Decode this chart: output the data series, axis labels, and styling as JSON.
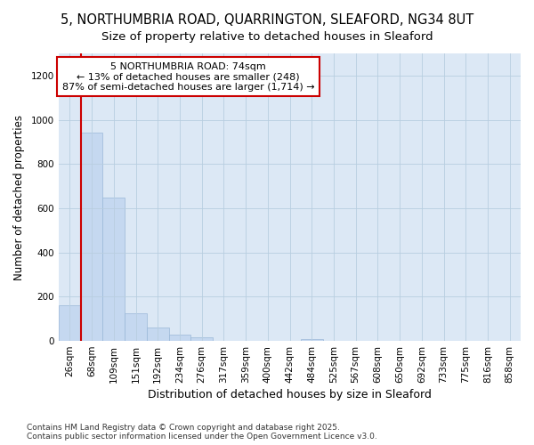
{
  "title1": "5, NORTHUMBRIA ROAD, QUARRINGTON, SLEAFORD, NG34 8UT",
  "title2": "Size of property relative to detached houses in Sleaford",
  "xlabel": "Distribution of detached houses by size in Sleaford",
  "ylabel": "Number of detached properties",
  "bin_labels": [
    "26sqm",
    "68sqm",
    "109sqm",
    "151sqm",
    "192sqm",
    "234sqm",
    "276sqm",
    "317sqm",
    "359sqm",
    "400sqm",
    "442sqm",
    "484sqm",
    "525sqm",
    "567sqm",
    "608sqm",
    "650sqm",
    "692sqm",
    "733sqm",
    "775sqm",
    "816sqm",
    "858sqm"
  ],
  "bar_heights": [
    160,
    940,
    650,
    125,
    60,
    30,
    15,
    0,
    0,
    0,
    0,
    10,
    0,
    0,
    0,
    0,
    0,
    0,
    0,
    0,
    0
  ],
  "bar_color": "#c5d8f0",
  "bar_edge_color": "#9ab8d8",
  "property_line_x": 0.5,
  "annotation_text": "5 NORTHUMBRIA ROAD: 74sqm\n← 13% of detached houses are smaller (248)\n87% of semi-detached houses are larger (1,714) →",
  "annotation_box_color": "#ffffff",
  "annotation_box_edge": "#cc0000",
  "line_color": "#cc0000",
  "ylim": [
    0,
    1300
  ],
  "yticks": [
    0,
    200,
    400,
    600,
    800,
    1000,
    1200
  ],
  "grid_color": "#b8cee0",
  "background_color": "#dce8f5",
  "figure_color": "#ffffff",
  "footer_text": "Contains HM Land Registry data © Crown copyright and database right 2025.\nContains public sector information licensed under the Open Government Licence v3.0.",
  "title1_fontsize": 10.5,
  "title2_fontsize": 9.5,
  "xlabel_fontsize": 9,
  "ylabel_fontsize": 8.5,
  "tick_fontsize": 7.5,
  "annotation_fontsize": 8,
  "footer_fontsize": 6.5
}
